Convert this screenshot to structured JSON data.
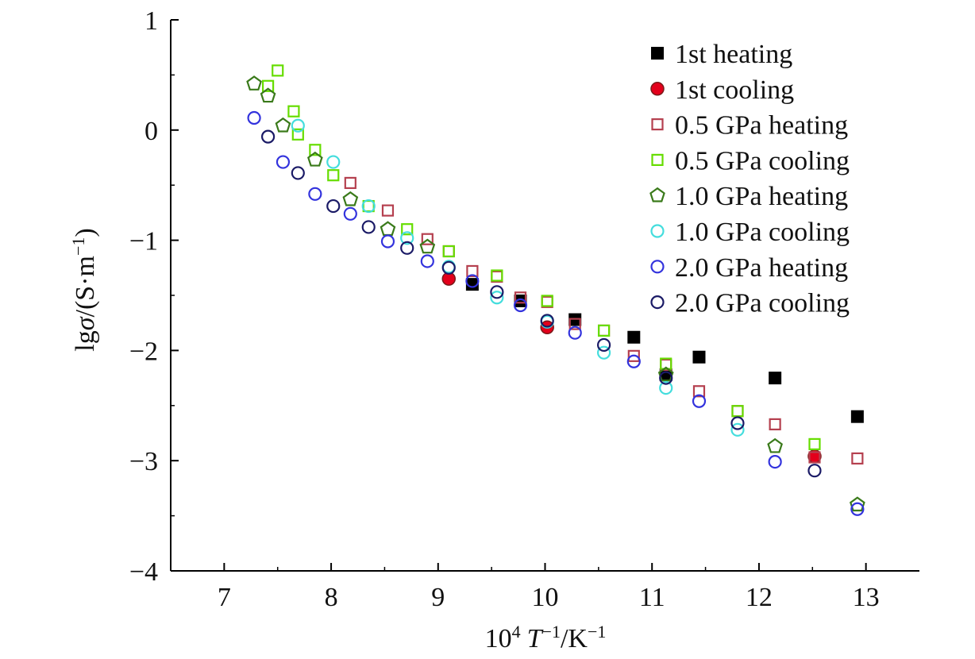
{
  "chart_data": {
    "type": "scatter",
    "xlabel_parts": {
      "base": "10",
      "exp": "4",
      "sym": "T",
      "sym_exp": "−1",
      "unit": "/K",
      "unit_exp": "−1"
    },
    "ylabel_parts": {
      "pre": "lg",
      "sym": "σ",
      "unit": "/(S·m",
      "unit_exp": "−1",
      "close": ")"
    },
    "xlim": [
      6.5,
      13.5
    ],
    "ylim": [
      -4,
      1
    ],
    "xticks": [
      7,
      8,
      9,
      10,
      11,
      12,
      13
    ],
    "yticks": [
      1,
      0,
      -1,
      -2,
      -3,
      -4
    ],
    "ytick_labels": [
      "1",
      "0",
      "−1",
      "−2",
      "−3",
      "−4"
    ],
    "legend_position": "top-right",
    "series": [
      {
        "name": "1st heating",
        "marker": "square-filled",
        "color": "#000000",
        "x": [
          9.32,
          9.77,
          10.28,
          10.83,
          11.13,
          11.44,
          12.15,
          12.92
        ],
        "y": [
          -1.4,
          -1.55,
          -1.72,
          -1.88,
          -2.22,
          -2.06,
          -2.25,
          -2.6
        ]
      },
      {
        "name": "1st cooling",
        "marker": "circle-filled",
        "color": "#e3001b",
        "x": [
          9.1,
          10.02,
          12.52
        ],
        "y": [
          -1.35,
          -1.79,
          -2.96
        ]
      },
      {
        "name": "0.5 GPa heating",
        "marker": "square-open",
        "color": "#b5404f",
        "x": [
          8.18,
          8.53,
          8.9,
          9.1,
          9.32,
          9.55,
          9.77,
          10.02,
          10.28,
          10.55,
          10.83,
          11.13,
          11.44,
          11.8,
          12.15,
          12.52,
          12.92
        ],
        "y": [
          -0.48,
          -0.73,
          -0.99,
          -1.1,
          -1.28,
          -1.33,
          -1.52,
          -1.56,
          -1.76,
          -1.82,
          -2.05,
          -2.13,
          -2.37,
          -2.55,
          -2.67,
          -2.97,
          -2.98
        ]
      },
      {
        "name": "0.5 GPa cooling",
        "marker": "square-open",
        "color": "#66dd00",
        "x": [
          7.41,
          7.5,
          7.65,
          7.69,
          7.85,
          8.02,
          8.35,
          8.71,
          9.1,
          9.55,
          10.02,
          10.55,
          11.13,
          11.8,
          12.52
        ],
        "y": [
          0.4,
          0.54,
          0.17,
          -0.04,
          -0.18,
          -0.41,
          -0.69,
          -0.9,
          -1.1,
          -1.32,
          -1.55,
          -1.82,
          -2.12,
          -2.55,
          -2.85
        ]
      },
      {
        "name": "1.0 GPa heating",
        "marker": "pentagon-open",
        "color": "#3a7a1a",
        "x": [
          7.28,
          7.41,
          7.55,
          7.85,
          8.18,
          8.53,
          8.9,
          11.13,
          12.15,
          12.92
        ],
        "y": [
          0.42,
          0.31,
          0.04,
          -0.27,
          -0.63,
          -0.9,
          -1.06,
          -2.22,
          -2.87,
          -3.4
        ]
      },
      {
        "name": "1.0 GPa cooling",
        "marker": "circle-open",
        "color": "#44dddd",
        "x": [
          7.69,
          8.02,
          8.35,
          8.71,
          9.1,
          9.55,
          10.02,
          10.55,
          11.13,
          11.8
        ],
        "y": [
          0.04,
          -0.29,
          -0.69,
          -0.98,
          -1.24,
          -1.52,
          -1.74,
          -2.02,
          -2.34,
          -2.72
        ]
      },
      {
        "name": "2.0 GPa heating",
        "marker": "circle-open",
        "color": "#3333dd",
        "x": [
          7.28,
          7.55,
          7.85,
          8.18,
          8.53,
          8.9,
          9.32,
          9.77,
          10.28,
          10.83,
          11.44,
          12.15,
          12.92
        ],
        "y": [
          0.11,
          -0.29,
          -0.58,
          -0.76,
          -1.01,
          -1.19,
          -1.37,
          -1.59,
          -1.84,
          -2.1,
          -2.46,
          -3.01,
          -3.44
        ]
      },
      {
        "name": "2.0 GPa cooling",
        "marker": "circle-open",
        "color": "#1a1a66",
        "x": [
          7.41,
          7.69,
          8.02,
          8.35,
          8.71,
          9.1,
          9.55,
          10.02,
          10.55,
          11.13,
          11.8,
          12.52
        ],
        "y": [
          -0.06,
          -0.39,
          -0.69,
          -0.88,
          -1.07,
          -1.25,
          -1.47,
          -1.73,
          -1.95,
          -2.25,
          -2.66,
          -3.09
        ]
      }
    ]
  }
}
